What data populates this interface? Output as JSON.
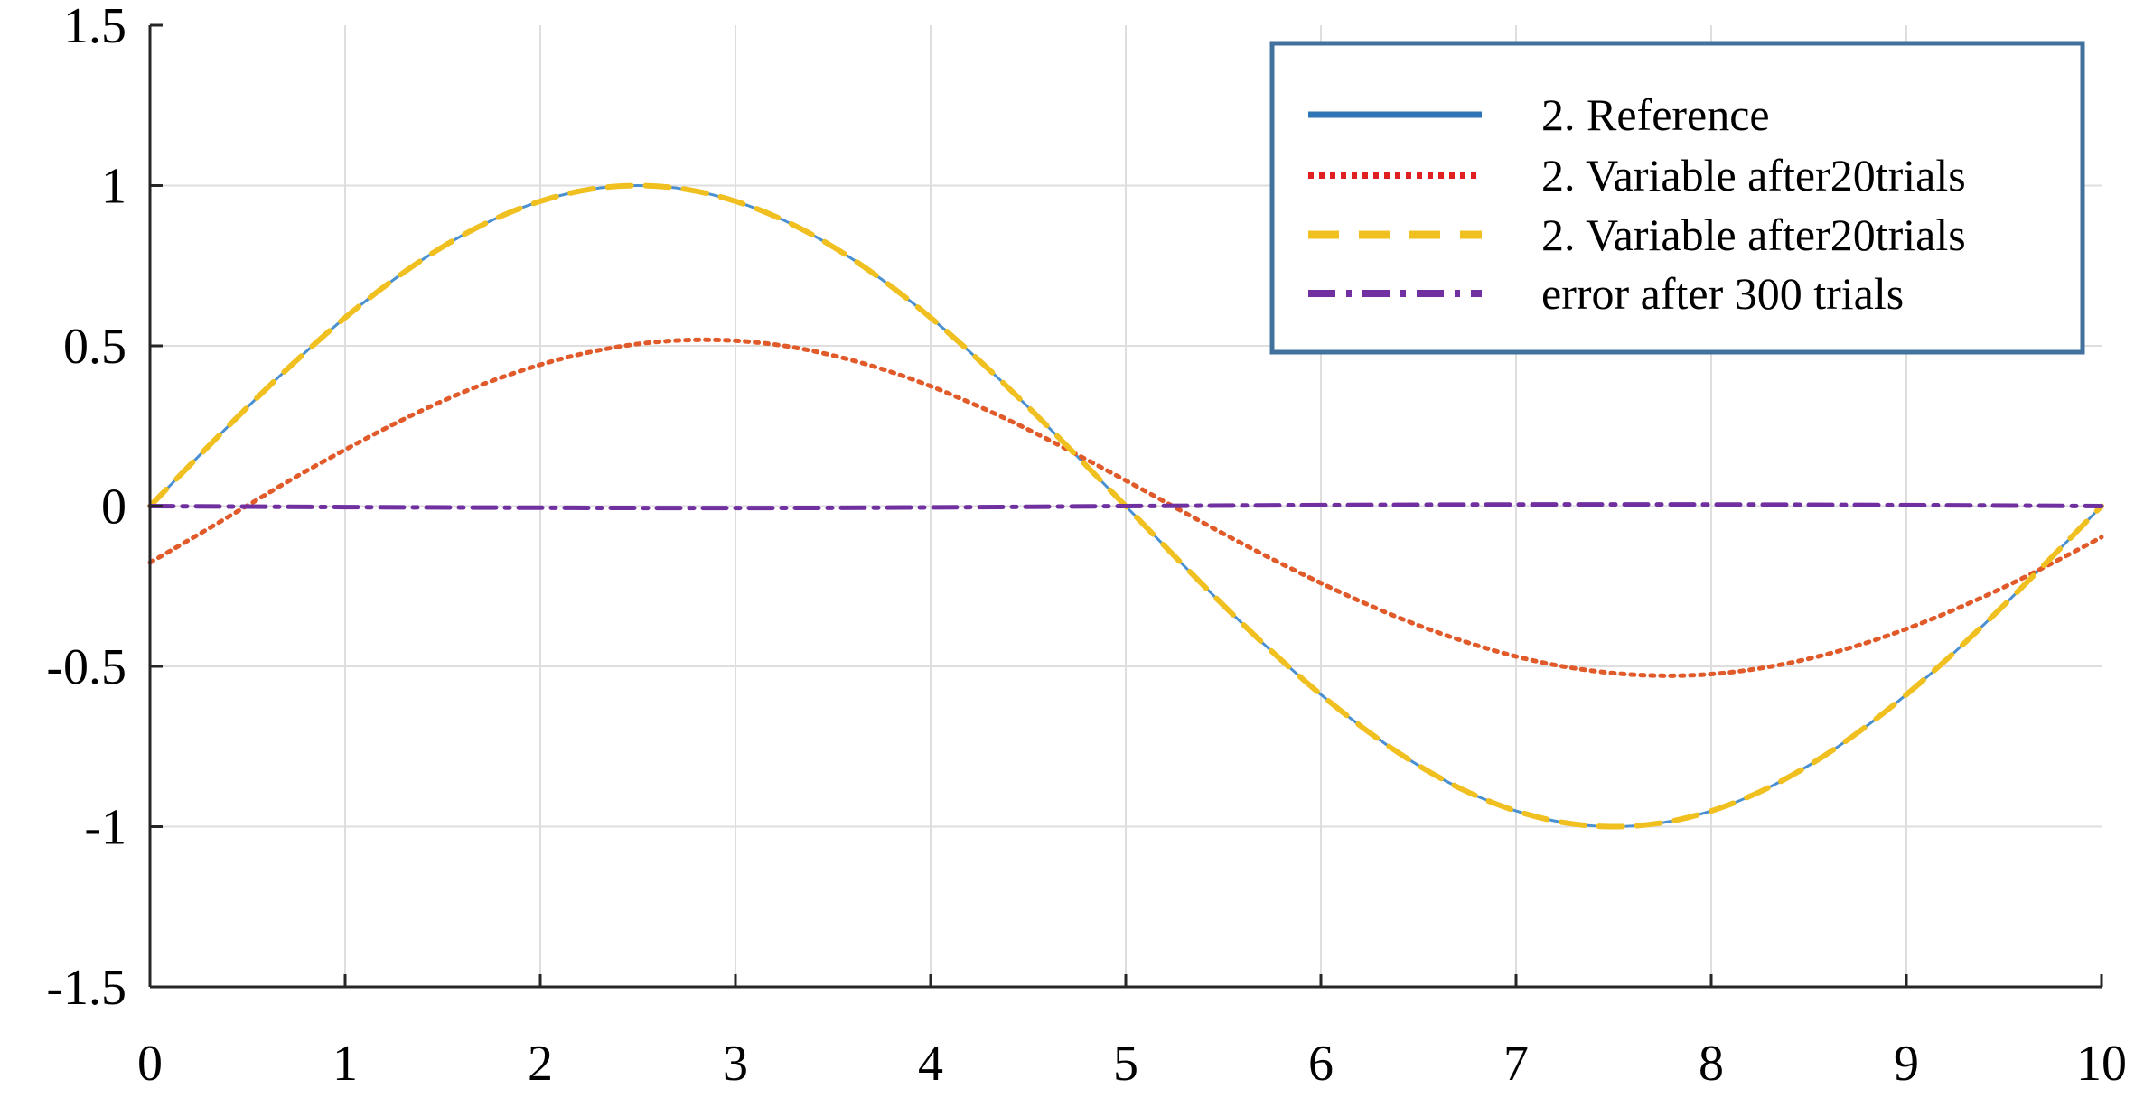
{
  "chart_data": {
    "type": "line",
    "title": "",
    "xlabel": "",
    "ylabel": "",
    "xlim": [
      0,
      10
    ],
    "ylim": [
      -1.5,
      1.5
    ],
    "grid": true,
    "legend_position": "top-right",
    "x_ticks": [
      0,
      1,
      2,
      3,
      4,
      5,
      6,
      7,
      8,
      9,
      10
    ],
    "x_tick_labels": [
      "0",
      "1",
      "2",
      "3",
      "4",
      "5",
      "6",
      "7",
      "8",
      "9",
      "10"
    ],
    "y_ticks": [
      1.5,
      1,
      0.5,
      0,
      -0.5,
      -1,
      -1.5
    ],
    "y_tick_labels": [
      "1.5",
      "1",
      "0.5",
      "0",
      "-0.5",
      "-1",
      "-1.5"
    ],
    "series": [
      {
        "name": "2. Reference",
        "color": "#4a90d0",
        "legend_color": "#2e75b6",
        "style": "solid",
        "x": [
          0,
          0.25,
          0.5,
          0.75,
          1,
          1.25,
          1.5,
          1.75,
          2,
          2.25,
          2.5,
          2.75,
          3,
          3.25,
          3.5,
          3.75,
          4,
          4.25,
          4.5,
          4.75,
          5,
          5.25,
          5.5,
          5.75,
          6,
          6.25,
          6.5,
          6.75,
          7,
          7.25,
          7.5,
          7.75,
          8,
          8.25,
          8.5,
          8.75,
          9,
          9.25,
          9.5,
          9.75,
          10
        ],
        "y": [
          0,
          0.156,
          0.309,
          0.454,
          0.588,
          0.707,
          0.809,
          0.891,
          0.951,
          0.988,
          1,
          0.988,
          0.951,
          0.891,
          0.809,
          0.707,
          0.588,
          0.454,
          0.309,
          0.156,
          0,
          -0.156,
          -0.309,
          -0.454,
          -0.588,
          -0.707,
          -0.809,
          -0.891,
          -0.951,
          -0.988,
          -1,
          -0.988,
          -0.951,
          -0.891,
          -0.809,
          -0.707,
          -0.588,
          -0.454,
          -0.309,
          -0.156,
          0
        ]
      },
      {
        "name": "2. Variable after20trials",
        "color": "#e05a2a",
        "legend_color": "#e02020",
        "style": "dotted",
        "x": [
          0,
          0.25,
          0.5,
          0.75,
          1,
          1.25,
          1.5,
          1.75,
          2,
          2.25,
          2.5,
          2.75,
          3,
          3.25,
          3.5,
          3.75,
          4,
          4.25,
          4.5,
          4.75,
          5,
          5.25,
          5.5,
          5.75,
          6,
          6.25,
          6.5,
          6.75,
          7,
          7.25,
          7.5,
          7.75,
          8,
          8.25,
          8.5,
          8.75,
          9,
          9.25,
          9.5,
          9.75,
          10
        ],
        "y": [
          -0.176,
          -0.088,
          0.002,
          0.092,
          0.176,
          0.256,
          0.328,
          0.39,
          0.441,
          0.48,
          0.506,
          0.518,
          0.516,
          0.5,
          0.47,
          0.428,
          0.374,
          0.31,
          0.239,
          0.161,
          0.08,
          -0.003,
          -0.086,
          -0.165,
          -0.24,
          -0.31,
          -0.372,
          -0.425,
          -0.469,
          -0.501,
          -0.521,
          -0.529,
          -0.524,
          -0.506,
          -0.476,
          -0.435,
          -0.383,
          -0.322,
          -0.253,
          -0.177,
          -0.097
        ]
      },
      {
        "name": "2. Variable after20trials",
        "color": "#f0c020",
        "legend_color": "#f0c020",
        "style": "dashed",
        "x": [
          0,
          0.25,
          0.5,
          0.75,
          1,
          1.25,
          1.5,
          1.75,
          2,
          2.25,
          2.5,
          2.75,
          3,
          3.25,
          3.5,
          3.75,
          4,
          4.25,
          4.5,
          4.75,
          5,
          5.25,
          5.5,
          5.75,
          6,
          6.25,
          6.5,
          6.75,
          7,
          7.25,
          7.5,
          7.75,
          8,
          8.25,
          8.5,
          8.75,
          9,
          9.25,
          9.5,
          9.75,
          10
        ],
        "y": [
          0,
          0.156,
          0.309,
          0.454,
          0.588,
          0.707,
          0.809,
          0.891,
          0.951,
          0.988,
          1,
          0.988,
          0.951,
          0.891,
          0.809,
          0.707,
          0.588,
          0.454,
          0.309,
          0.156,
          0,
          -0.156,
          -0.309,
          -0.454,
          -0.588,
          -0.707,
          -0.809,
          -0.891,
          -0.951,
          -0.988,
          -1,
          -0.988,
          -0.951,
          -0.891,
          -0.809,
          -0.707,
          -0.588,
          -0.454,
          -0.309,
          -0.156,
          0
        ]
      },
      {
        "name": "error after 300 trials",
        "color": "#7030a0",
        "legend_color": "#7030a0",
        "style": "dashdot",
        "x": [
          0,
          1,
          2,
          3,
          4,
          5,
          6,
          7,
          8,
          9,
          10
        ],
        "y": [
          0,
          -0.003,
          -0.005,
          -0.006,
          -0.004,
          0,
          0.003,
          0.005,
          0.005,
          0.003,
          0
        ]
      }
    ]
  }
}
